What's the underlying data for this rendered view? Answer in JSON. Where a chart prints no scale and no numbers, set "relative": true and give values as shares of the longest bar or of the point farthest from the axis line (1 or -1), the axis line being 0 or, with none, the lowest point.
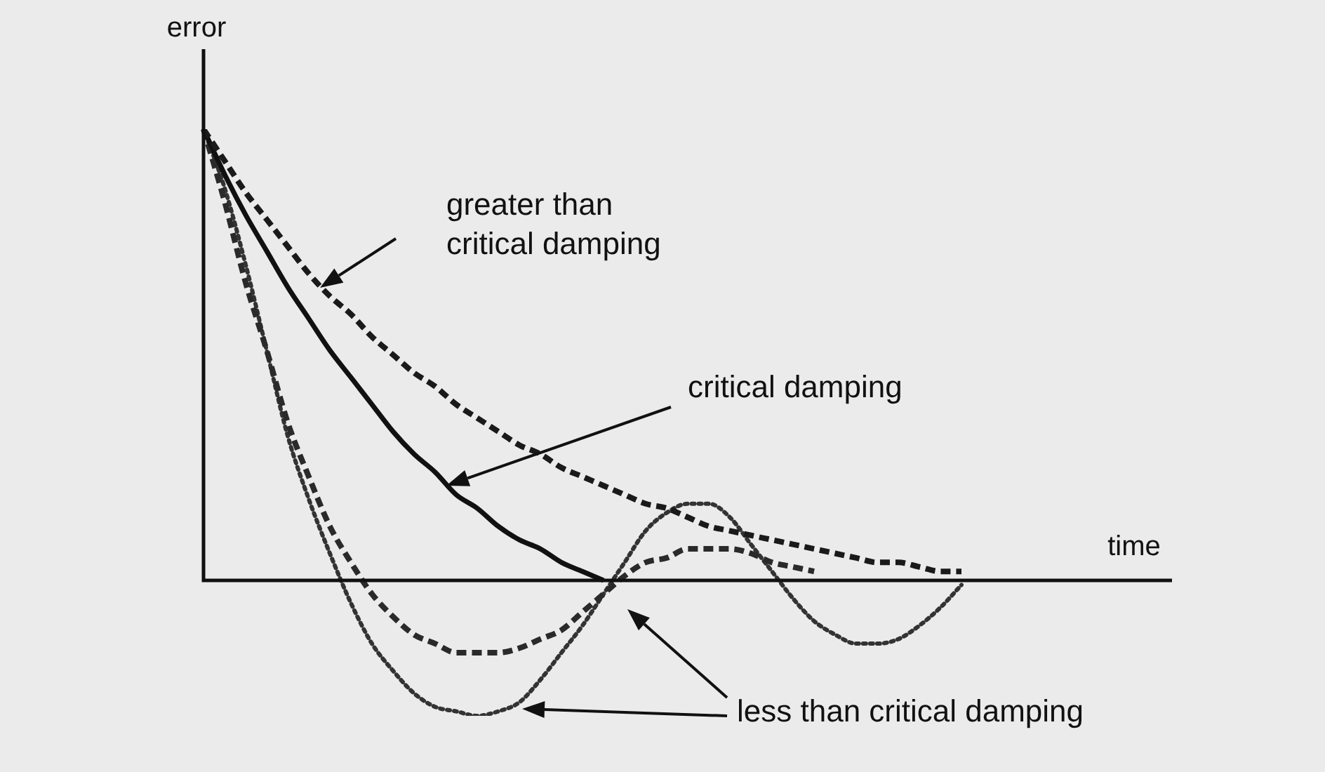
{
  "chart_data": {
    "type": "line",
    "relative": true,
    "xlabel": "time",
    "ylabel": "error",
    "legend": false,
    "marker": "none",
    "categories": [
      null,
      null,
      null,
      null,
      null,
      null,
      null,
      null,
      null,
      null,
      null,
      null,
      null,
      null,
      null,
      null,
      null,
      null,
      null,
      null,
      null,
      null,
      null,
      null,
      null,
      null,
      null,
      null,
      null,
      null,
      null,
      null,
      null,
      null,
      null,
      null,
      null
    ],
    "series": [
      {
        "color": "#1a1a1a",
        "line_style": "dashed",
        "values": [
          1.0,
          0.93,
          0.86,
          0.8,
          0.74,
          0.68,
          0.63,
          0.59,
          0.54,
          0.5,
          0.46,
          0.43,
          0.39,
          0.36,
          0.33,
          0.3,
          0.28,
          0.25,
          0.23,
          0.21,
          0.19,
          0.17,
          0.16,
          0.14,
          0.12,
          0.11,
          0.1,
          0.09,
          0.08,
          0.07,
          0.06,
          0.05,
          0.04,
          0.04,
          0.03,
          0.02,
          0.02
        ]
      },
      {
        "color": "#111111",
        "line_style": "solid",
        "values": [
          1.0,
          0.9,
          0.81,
          0.73,
          0.65,
          0.58,
          0.51,
          0.45,
          0.39,
          0.33,
          0.28,
          0.24,
          0.19,
          0.16,
          0.12,
          0.09,
          0.07,
          0.04,
          0.02,
          0.0,
          null,
          null,
          null,
          null,
          null,
          null,
          null,
          null,
          null,
          null,
          null,
          null,
          null,
          null,
          null,
          null,
          null
        ]
      },
      {
        "color": "#2a2a2a",
        "line_style": "dashed",
        "values": [
          1.0,
          0.84,
          0.66,
          0.51,
          0.35,
          0.23,
          0.12,
          0.04,
          -0.03,
          -0.08,
          -0.12,
          -0.14,
          -0.16,
          -0.16,
          -0.16,
          -0.15,
          -0.13,
          -0.11,
          -0.07,
          -0.03,
          0.01,
          0.04,
          0.05,
          0.07,
          0.07,
          0.07,
          0.06,
          0.04,
          0.03,
          0.02,
          null,
          null,
          null,
          null,
          null,
          null,
          null
        ]
      },
      {
        "color": "#333333",
        "line_style": "dotted",
        "values": [
          1.0,
          0.87,
          0.7,
          0.51,
          0.32,
          0.18,
          0.06,
          -0.05,
          -0.14,
          -0.2,
          -0.25,
          -0.28,
          -0.29,
          -0.3,
          -0.29,
          -0.27,
          -0.22,
          -0.16,
          -0.1,
          -0.03,
          0.04,
          0.11,
          0.15,
          0.17,
          0.17,
          0.14,
          0.08,
          0.02,
          -0.04,
          -0.09,
          -0.12,
          -0.14,
          -0.14,
          -0.13,
          -0.1,
          -0.06,
          -0.01
        ]
      }
    ],
    "annotations": [
      "greater than critical damping",
      "critical damping",
      "less than critical damping"
    ]
  }
}
